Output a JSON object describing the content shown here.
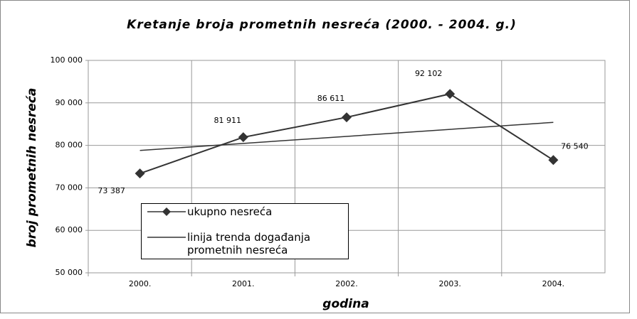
{
  "chart_data": {
    "type": "line",
    "title": "Kretanje broja prometnih nesreća (2000. - 2004. g.)",
    "x_label": "godina",
    "y_label": "broj prometnih nesreća",
    "categories": [
      "2000.",
      "2001.",
      "2002.",
      "2003.",
      "2004."
    ],
    "series": [
      {
        "name": "ukupno nesreća",
        "color": "#333333",
        "marker": "diamond",
        "values": [
          73387,
          81911,
          86611,
          92102,
          76540
        ],
        "value_labels": [
          "73 387",
          "81 911",
          "86 611",
          "92 102",
          "76 540"
        ]
      },
      {
        "name": "linija trenda događanja prometnih nesreća",
        "color": "#333333",
        "marker": "none",
        "values": [
          78811,
          80460,
          82110,
          83760,
          85410
        ]
      }
    ],
    "ylim": [
      50000,
      100000
    ],
    "yticks": [
      {
        "value": 50000,
        "label": "50 000"
      },
      {
        "value": 60000,
        "label": "60 000"
      },
      {
        "value": 70000,
        "label": "70 000"
      },
      {
        "value": 80000,
        "label": "80 000"
      },
      {
        "value": 90000,
        "label": "90 000"
      },
      {
        "value": 100000,
        "label": "100 000"
      }
    ],
    "grid": true,
    "legend": "lower-left"
  }
}
